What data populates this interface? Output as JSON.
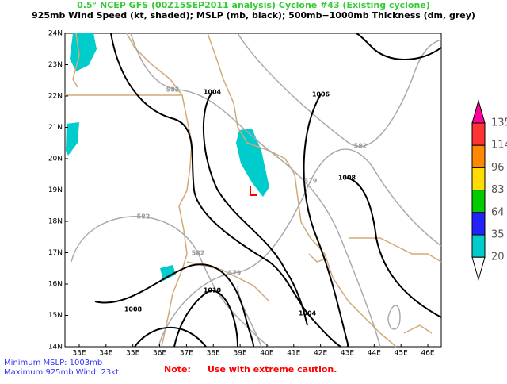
{
  "header": {
    "line1": "0.5° NCEP GFS (00Z15SEP2011 analysis) Cyclone #43 (Existing cyclone)",
    "line2": "925mb Wind Speed (kt, shaded); MSLP (mb, black); 500mb−1000mb Thickness (dm, grey)"
  },
  "map": {
    "lon_labels": [
      "33E",
      "34E",
      "35E",
      "36E",
      "37E",
      "38E",
      "39E",
      "40E",
      "41E",
      "42E",
      "43E",
      "44E",
      "45E",
      "46E"
    ],
    "lat_labels": [
      "24N",
      "23N",
      "22N",
      "21N",
      "20N",
      "19N",
      "18N",
      "17N",
      "16N",
      "15N",
      "14N"
    ]
  },
  "contour_labels": [
    "582",
    "1004",
    "1006",
    "582",
    "1008",
    "579",
    "582",
    "582",
    "579",
    "1010",
    "1008",
    "1004"
  ],
  "colorbar": {
    "labels": [
      "135",
      "114",
      "96",
      "83",
      "64",
      "35",
      "20"
    ],
    "colors": [
      "#ff0099",
      "#ff3333",
      "#ff8800",
      "#ffdd00",
      "#00cc00",
      "#2222ff",
      "#00cccc"
    ]
  },
  "footer": {
    "min_mslp": "Minimum MSLP: 1003mb",
    "max_wind": "Maximum 925mb Wind: 23kt",
    "note": "Note:",
    "caution": "Use with extreme caution."
  }
}
